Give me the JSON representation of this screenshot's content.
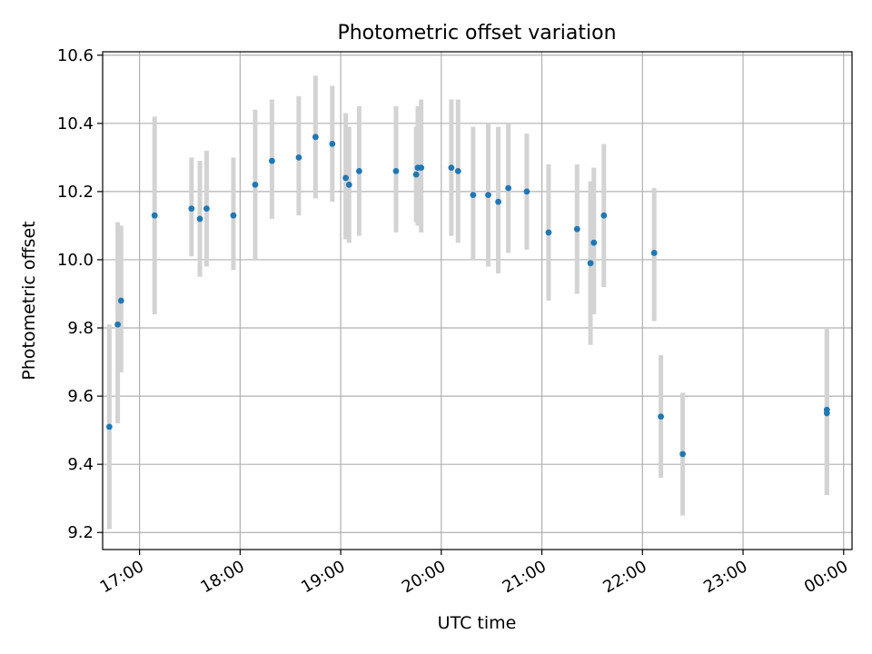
{
  "chart_data": {
    "type": "scatter",
    "title": "Photometric offset variation",
    "xlabel": "UTC time",
    "ylabel": "Photometric offset",
    "grid": true,
    "xlim": [
      "16:38",
      "00:05"
    ],
    "ylim": [
      9.15,
      10.61
    ],
    "x_ticks": [
      "17:00",
      "18:00",
      "19:00",
      "20:00",
      "21:00",
      "22:00",
      "23:00",
      "00:00"
    ],
    "y_ticks": [
      "9.2",
      "9.4",
      "9.6",
      "9.8",
      "10.0",
      "10.2",
      "10.4",
      "10.6"
    ],
    "point_color": "#1f77b4",
    "errorbar_color": "#d3d3d3",
    "points": [
      {
        "time": "16:42",
        "y": 9.51,
        "lo": 9.21,
        "hi": 9.81
      },
      {
        "time": "16:47",
        "y": 9.81,
        "lo": 9.52,
        "hi": 10.11
      },
      {
        "time": "16:49",
        "y": 9.88,
        "lo": 9.67,
        "hi": 10.1
      },
      {
        "time": "17:09",
        "y": 10.13,
        "lo": 9.84,
        "hi": 10.42
      },
      {
        "time": "17:31",
        "y": 10.15,
        "lo": 10.01,
        "hi": 10.3
      },
      {
        "time": "17:36",
        "y": 10.12,
        "lo": 9.95,
        "hi": 10.29
      },
      {
        "time": "17:40",
        "y": 10.15,
        "lo": 9.98,
        "hi": 10.32
      },
      {
        "time": "17:56",
        "y": 10.13,
        "lo": 9.97,
        "hi": 10.3
      },
      {
        "time": "18:09",
        "y": 10.22,
        "lo": 10.0,
        "hi": 10.44
      },
      {
        "time": "18:19",
        "y": 10.29,
        "lo": 10.12,
        "hi": 10.47
      },
      {
        "time": "18:35",
        "y": 10.3,
        "lo": 10.13,
        "hi": 10.48
      },
      {
        "time": "18:45",
        "y": 10.36,
        "lo": 10.18,
        "hi": 10.54
      },
      {
        "time": "18:55",
        "y": 10.34,
        "lo": 10.17,
        "hi": 10.51
      },
      {
        "time": "19:03",
        "y": 10.24,
        "lo": 10.06,
        "hi": 10.43
      },
      {
        "time": "19:05",
        "y": 10.22,
        "lo": 10.05,
        "hi": 10.39
      },
      {
        "time": "19:11",
        "y": 10.26,
        "lo": 10.07,
        "hi": 10.45
      },
      {
        "time": "19:33",
        "y": 10.26,
        "lo": 10.08,
        "hi": 10.45
      },
      {
        "time": "19:45",
        "y": 10.25,
        "lo": 10.11,
        "hi": 10.39
      },
      {
        "time": "19:46",
        "y": 10.27,
        "lo": 10.1,
        "hi": 10.45
      },
      {
        "time": "19:48",
        "y": 10.27,
        "lo": 10.08,
        "hi": 10.47
      },
      {
        "time": "20:06",
        "y": 10.27,
        "lo": 10.07,
        "hi": 10.47
      },
      {
        "time": "20:10",
        "y": 10.26,
        "lo": 10.05,
        "hi": 10.47
      },
      {
        "time": "20:19",
        "y": 10.19,
        "lo": 10.0,
        "hi": 10.39
      },
      {
        "time": "20:28",
        "y": 10.19,
        "lo": 9.98,
        "hi": 10.4
      },
      {
        "time": "20:34",
        "y": 10.17,
        "lo": 9.96,
        "hi": 10.39
      },
      {
        "time": "20:40",
        "y": 10.21,
        "lo": 10.02,
        "hi": 10.4
      },
      {
        "time": "20:51",
        "y": 10.2,
        "lo": 10.03,
        "hi": 10.37
      },
      {
        "time": "21:04",
        "y": 10.08,
        "lo": 9.88,
        "hi": 10.28
      },
      {
        "time": "21:21",
        "y": 10.09,
        "lo": 9.9,
        "hi": 10.28
      },
      {
        "time": "21:29",
        "y": 9.99,
        "lo": 9.75,
        "hi": 10.23
      },
      {
        "time": "21:31",
        "y": 10.05,
        "lo": 9.84,
        "hi": 10.27
      },
      {
        "time": "21:37",
        "y": 10.13,
        "lo": 9.92,
        "hi": 10.34
      },
      {
        "time": "22:07",
        "y": 10.02,
        "lo": 9.82,
        "hi": 10.21
      },
      {
        "time": "22:11",
        "y": 9.54,
        "lo": 9.36,
        "hi": 9.72
      },
      {
        "time": "22:24",
        "y": 9.43,
        "lo": 9.25,
        "hi": 9.61
      },
      {
        "time": "23:50",
        "y": 9.56,
        "lo": 9.31,
        "hi": 9.8
      },
      {
        "time": "23:50",
        "y": 9.55,
        "lo": 9.31,
        "hi": 9.79
      }
    ]
  }
}
